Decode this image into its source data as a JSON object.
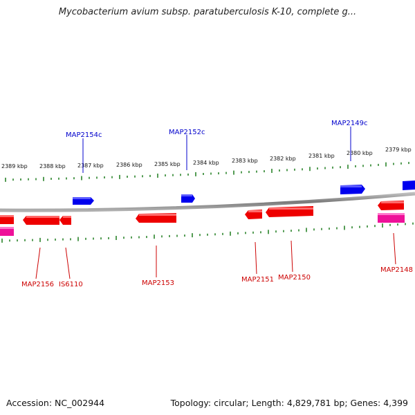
{
  "title": "Mycobacterium avium subsp. paratuberculosis K-10, complete g...",
  "accession": "Accession: NC_002944",
  "topology": "Topology: circular; Length: 4,829,781 bp; Genes: 4,399",
  "colors": {
    "forward_gene": "#0000ee",
    "reverse_gene": "#ee0000",
    "rna_feature": "#ee1199",
    "tick": "#1a7a1a",
    "backbone": "#8a8a8a"
  },
  "ticks": [
    "2389 kbp",
    "2388 kbp",
    "2387 kbp",
    "2386 kbp",
    "2385 kbp",
    "2384 kbp",
    "2383 kbp",
    "2382 kbp",
    "2381 kbp",
    "2380 kbp",
    "2379 kbp"
  ],
  "forward_labels": [
    "MAP2154c",
    "MAP2152c",
    "MAP2149c"
  ],
  "reverse_labels": [
    "MAP2156",
    "IS6110",
    "MAP2153",
    "MAP2151",
    "MAP2150",
    "MAP2148"
  ]
}
